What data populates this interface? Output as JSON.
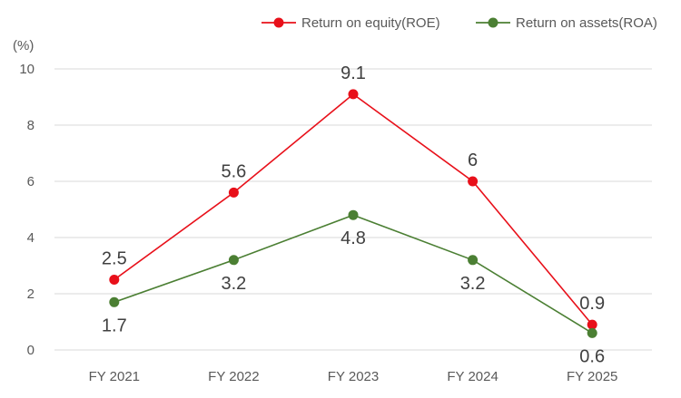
{
  "chart_data": {
    "type": "line",
    "unit_label": "(%)",
    "categories": [
      "FY 2021",
      "FY 2022",
      "FY 2023",
      "FY 2024",
      "FY 2025"
    ],
    "y_ticks": [
      "0",
      "2",
      "4",
      "6",
      "8",
      "10"
    ],
    "ylim": [
      0,
      10
    ],
    "grid": true,
    "legend_position": "top-right",
    "series": [
      {
        "name": "Return on equity(ROE)",
        "color": "#e8101a",
        "values": [
          2.5,
          5.6,
          9.1,
          6,
          0.9
        ],
        "labels": [
          "2.5",
          "5.6",
          "9.1",
          "6",
          "0.9"
        ]
      },
      {
        "name": "Return on assets(ROA)",
        "color": "#4b7f33",
        "values": [
          1.7,
          3.2,
          4.8,
          3.2,
          0.6
        ],
        "labels": [
          "1.7",
          "3.2",
          "4.8",
          "3.2",
          "0.6"
        ]
      }
    ]
  }
}
